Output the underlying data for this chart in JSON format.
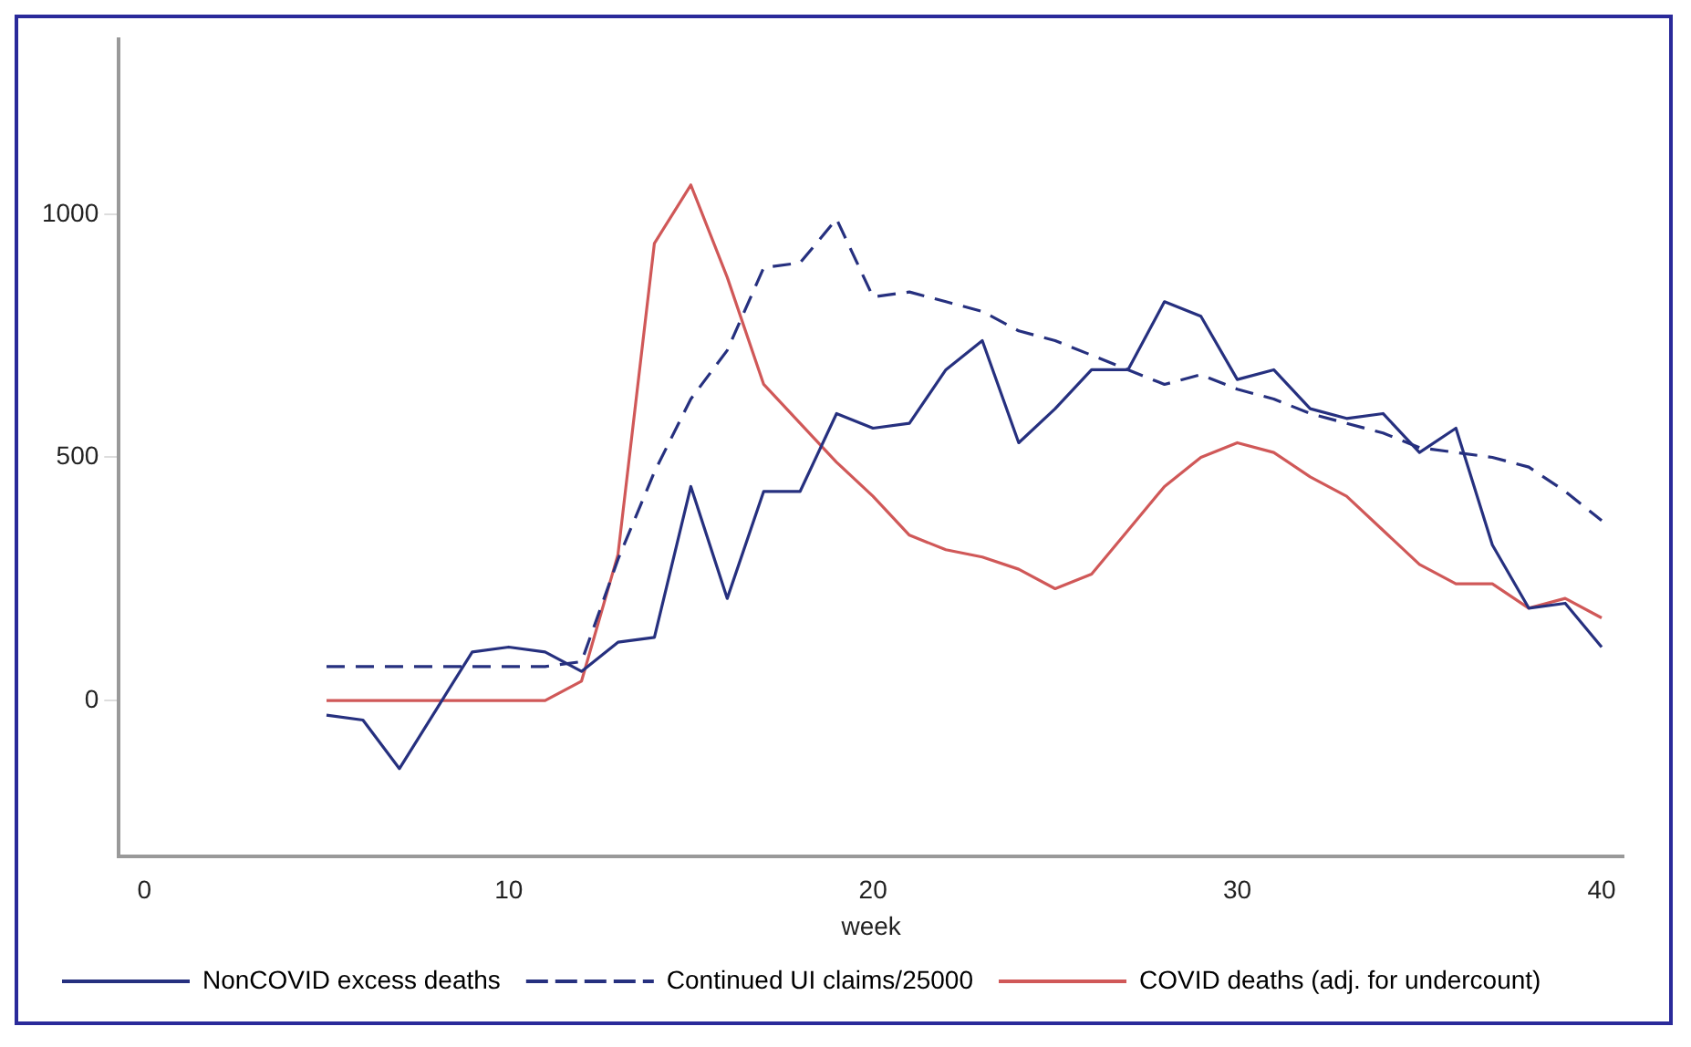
{
  "chart_data": {
    "type": "line",
    "xlabel": "week",
    "x": [
      5,
      6,
      7,
      8,
      9,
      10,
      11,
      12,
      13,
      14,
      15,
      16,
      17,
      18,
      19,
      20,
      21,
      22,
      23,
      24,
      25,
      26,
      27,
      28,
      29,
      30,
      31,
      32,
      33,
      34,
      35,
      36,
      37,
      38,
      39,
      40
    ],
    "series": [
      {
        "name": "NonCOVID excess deaths",
        "color": "#26307f",
        "line_style": "solid",
        "values": [
          -30,
          -40,
          -140,
          -20,
          100,
          110,
          100,
          60,
          120,
          130,
          440,
          210,
          430,
          430,
          590,
          560,
          570,
          680,
          740,
          530,
          600,
          680,
          680,
          820,
          790,
          660,
          680,
          600,
          580,
          590,
          510,
          560,
          320,
          190,
          200,
          110
        ]
      },
      {
        "name": "Continued UI claims/25000",
        "color": "#26307f",
        "line_style": "dashed",
        "values": [
          70,
          70,
          70,
          70,
          70,
          70,
          70,
          80,
          290,
          470,
          620,
          720,
          890,
          900,
          990,
          830,
          840,
          820,
          800,
          760,
          740,
          710,
          680,
          650,
          670,
          640,
          620,
          590,
          570,
          550,
          520,
          510,
          500,
          480,
          430,
          370
        ]
      },
      {
        "name": "COVID deaths (adj. for undercount)",
        "color": "#d05858",
        "line_style": "solid",
        "values": [
          0,
          0,
          0,
          0,
          0,
          0,
          0,
          40,
          300,
          940,
          1060,
          870,
          650,
          570,
          490,
          420,
          340,
          310,
          295,
          270,
          230,
          260,
          350,
          440,
          500,
          530,
          510,
          460,
          420,
          350,
          280,
          240,
          240,
          190,
          210,
          170
        ]
      }
    ],
    "xlim": [
      -0.7,
      40.6
    ],
    "ylim": [
      -320,
      1360
    ],
    "xticks": [
      0,
      10,
      20,
      30,
      40
    ],
    "yticks": [
      0,
      500,
      1000
    ],
    "grid": false,
    "legend": "bottom",
    "marker": "none"
  }
}
